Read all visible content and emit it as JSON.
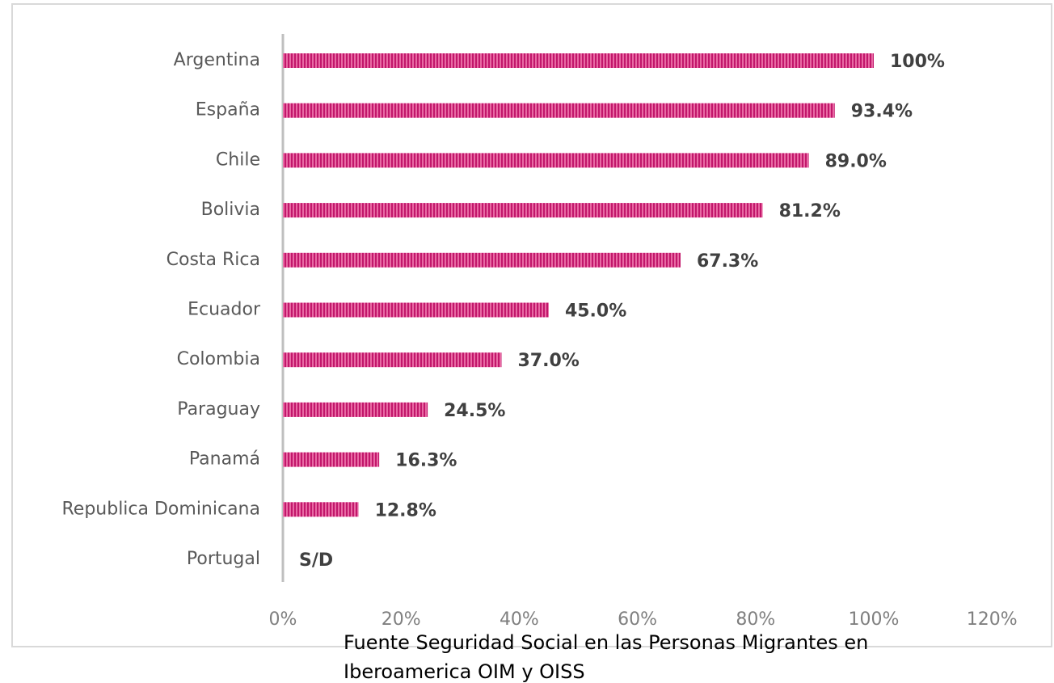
{
  "chart_data": {
    "type": "bar",
    "orientation": "horizontal",
    "categories": [
      "Argentina",
      "España",
      "Chile",
      "Bolivia",
      "Costa Rica",
      "Ecuador",
      "Colombia",
      "Paraguay",
      "Panamá",
      "Republica Dominicana",
      "Portugal"
    ],
    "values": [
      100,
      93.4,
      89.0,
      81.2,
      67.3,
      45.0,
      37.0,
      24.5,
      16.3,
      12.8,
      null
    ],
    "value_labels": [
      "100%",
      "93.4%",
      "89.0%",
      "81.2%",
      "67.3%",
      "45.0%",
      "37.0%",
      "24.5%",
      "16.3%",
      "12.8%",
      "S/D"
    ],
    "color": "#c2176b",
    "xlim": [
      0,
      120
    ],
    "xticks": [
      {
        "value": 0,
        "label": "0%"
      },
      {
        "value": 20,
        "label": "20%"
      },
      {
        "value": 40,
        "label": "40%"
      },
      {
        "value": 60,
        "label": "60%"
      },
      {
        "value": 80,
        "label": "80%"
      },
      {
        "value": 100,
        "label": "100%"
      },
      {
        "value": 120,
        "label": "120%"
      }
    ],
    "grid": false,
    "source": [
      "Fuente Seguridad Social en las Personas Migrantes en",
      "Iberoamerica OIM y OISS"
    ]
  }
}
